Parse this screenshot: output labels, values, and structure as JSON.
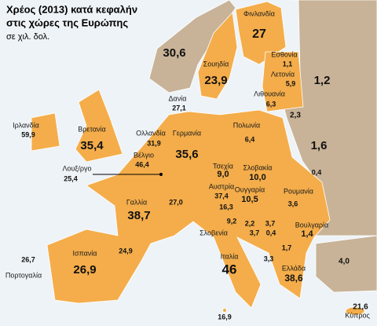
{
  "header": {
    "title": [
      "Χρέος (2013) κατά κεφαλήν",
      "στις χώρες της Ευρώπης"
    ],
    "subtitle": "σε χιλ. δολ."
  },
  "labels": [
    {
      "name": "Φινλανδία",
      "value": "27"
    },
    {
      "value": "30,6"
    },
    {
      "name": "Σουηδία",
      "value": "23,9"
    },
    {
      "name": "Εσθονία",
      "value": "1,1"
    },
    {
      "name": "Λετονία",
      "value": "5,9"
    },
    {
      "value": "1,2"
    },
    {
      "name": "Δανία",
      "value": "27,1"
    },
    {
      "name": "Λιθουανία",
      "value": "6,3"
    },
    {
      "value": "2,3"
    },
    {
      "name": "Ιρλανδία",
      "value": "59,9"
    },
    {
      "name": "Βρετανία",
      "value": "35,4"
    },
    {
      "name": "Ολλανδία",
      "value": "31,9"
    },
    {
      "name": "Γερμανία",
      "value": "35,6"
    },
    {
      "name": "Πολωνία",
      "value": "6,4"
    },
    {
      "value": "1,6"
    },
    {
      "name": "Βέλγιο",
      "value": "46,4"
    },
    {
      "name": "Λουξ/ργο",
      "value": "25,4"
    },
    {
      "name": "Τσεχία",
      "value": "9,0"
    },
    {
      "name": "Σλοβακία",
      "value": "10,0"
    },
    {
      "value": "0,4"
    },
    {
      "name": "Αυστρία",
      "value": "37,4"
    },
    {
      "name": "Ουγγαρία",
      "value": "10,5"
    },
    {
      "name": "Ρουμανία",
      "value": "3,6"
    },
    {
      "name": "Γαλλία",
      "value": "38,7"
    },
    {
      "value": "27,0"
    },
    {
      "name": "Σλοβενία",
      "value": "16,3"
    },
    {
      "value": "9,2"
    },
    {
      "value": "2,2"
    },
    {
      "value": "3,7"
    },
    {
      "value": "3,7"
    },
    {
      "value": "0,4"
    },
    {
      "name": "Βουλγαρία",
      "value": "1,4"
    },
    {
      "value": "1,7"
    },
    {
      "value": "24,9"
    },
    {
      "name": "Ισπανία",
      "value": "26,9"
    },
    {
      "name": "Πορτογαλία",
      "value": "26,7"
    },
    {
      "name": "Ιταλία",
      "value": "46"
    },
    {
      "value": "3,3"
    },
    {
      "name": "Ελλάδα",
      "value": "38,6"
    },
    {
      "value": "4,0"
    },
    {
      "name": "Κύπρος",
      "value": "21,6"
    },
    {
      "value": "16,9"
    }
  ]
}
